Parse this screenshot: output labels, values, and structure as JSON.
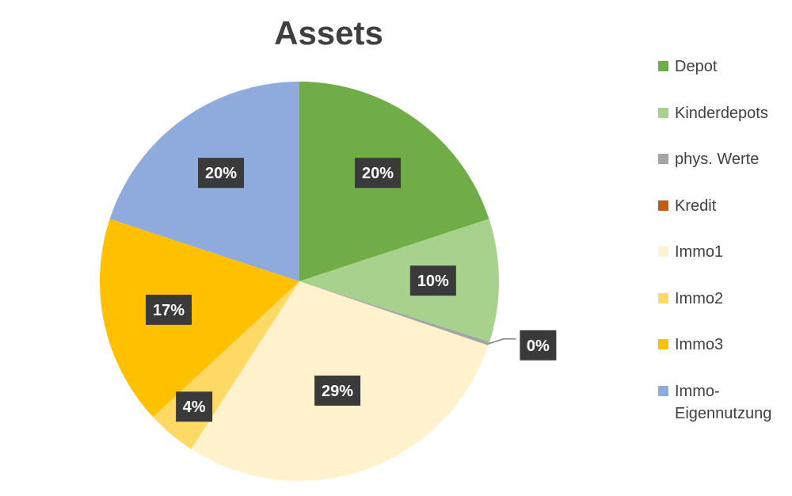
{
  "chart_data": {
    "type": "pie",
    "title": "Assets",
    "categories": [
      "Depot",
      "Kinderdepots",
      "phys. Werte",
      "Kredit",
      "Immo1",
      "Immo2",
      "Immo3",
      "Immo-Eigennutzung"
    ],
    "values": [
      20,
      10,
      0.3,
      0,
      29,
      4,
      17,
      20
    ],
    "data_labels": [
      "20%",
      "10%",
      "0%",
      "",
      "29%",
      "4%",
      "17%",
      "20%"
    ],
    "colors": [
      "#70AD47",
      "#A9D18E",
      "#A5A5A5",
      "#C55A11",
      "#FFF2CC",
      "#FFD966",
      "#FFC000",
      "#8FAADC"
    ],
    "legend_position": "right"
  },
  "legend": {
    "items": [
      "Depot",
      "Kinderdepots",
      "phys. Werte",
      "Kredit",
      "Immo1",
      "Immo2",
      "Immo3",
      "Immo-\nEigennutzung"
    ]
  }
}
